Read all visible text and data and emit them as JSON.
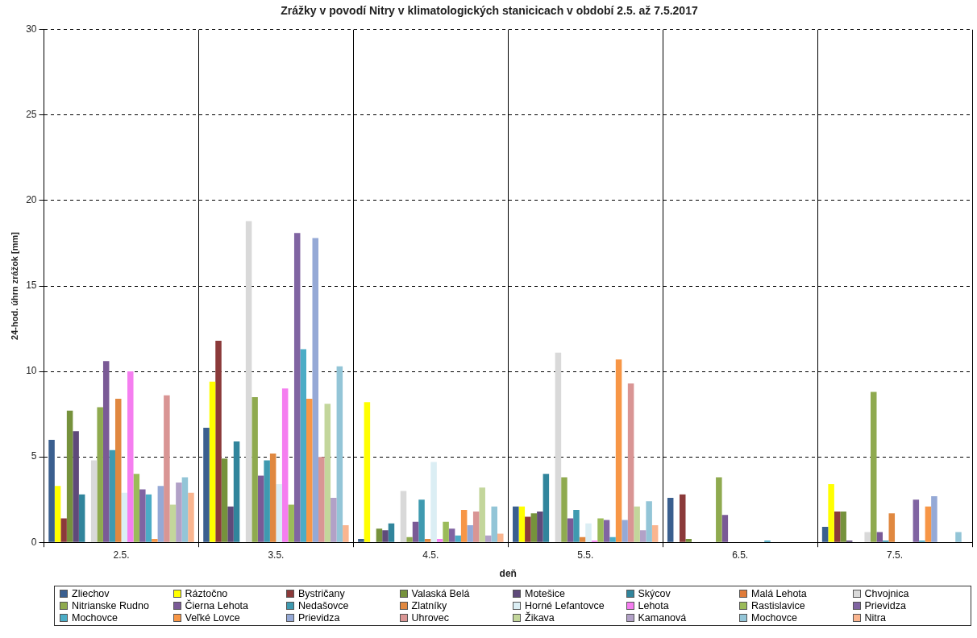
{
  "chart_data": {
    "type": "bar",
    "title": "Zrážky v povodí Nitry v klimatologických stanicicach v období 2.5. až 7.5.2017",
    "xlabel": "deň",
    "ylabel": "24-hod. úhrn zrážok [mm]",
    "categories": [
      "2.5.",
      "3.5.",
      "4.5.",
      "5.5.",
      "6.5.",
      "7.5."
    ],
    "ylim": [
      0,
      30
    ],
    "yticks": [
      0,
      5,
      10,
      15,
      20,
      25,
      30
    ],
    "grid": true,
    "legend": "bottom",
    "series": [
      {
        "name": "Zliechov",
        "color": "#3a5f8f",
        "values": [
          6.0,
          6.7,
          0.2,
          2.1,
          2.6,
          0.9
        ]
      },
      {
        "name": "Ráztočno",
        "color": "#ffff00",
        "values": [
          3.3,
          9.4,
          8.2,
          2.1,
          0,
          3.4
        ]
      },
      {
        "name": "Bystričany",
        "color": "#8b3a3a",
        "values": [
          1.4,
          11.8,
          0,
          1.5,
          2.8,
          1.8
        ]
      },
      {
        "name": "Valaská Belá",
        "color": "#76923c",
        "values": [
          7.7,
          4.9,
          0.8,
          1.7,
          0.2,
          1.8
        ]
      },
      {
        "name": "Motešice",
        "color": "#5f4a7a",
        "values": [
          6.5,
          2.1,
          0.7,
          1.8,
          0,
          0.1
        ]
      },
      {
        "name": "Skýcov",
        "color": "#31859c",
        "values": [
          2.8,
          5.9,
          1.1,
          4.0,
          0,
          0
        ]
      },
      {
        "name": "Malá Lehota",
        "color": "#e07b39",
        "values": [
          0,
          0,
          0,
          0,
          0,
          0
        ]
      },
      {
        "name": "Chvojnica",
        "color": "#d9d9d9",
        "values": [
          4.8,
          18.8,
          3.0,
          11.1,
          0,
          0.6
        ]
      },
      {
        "name": "Nitrianske Rudno",
        "color": "#8faa4f",
        "values": [
          7.9,
          8.5,
          0.3,
          3.8,
          3.8,
          8.8
        ]
      },
      {
        "name": "Čierna Lehota",
        "color": "#7a5a96",
        "values": [
          10.6,
          3.9,
          1.2,
          1.4,
          1.6,
          0.6
        ]
      },
      {
        "name": "Nedašovce",
        "color": "#3f9ab0",
        "values": [
          5.4,
          4.8,
          2.5,
          1.9,
          0,
          0.1
        ]
      },
      {
        "name": "Zlatníky",
        "color": "#e08840",
        "values": [
          8.4,
          5.2,
          0.2,
          0.3,
          0,
          1.7
        ]
      },
      {
        "name": "Horné Lefantovce",
        "color": "#dbeef4",
        "values": [
          2.9,
          3.4,
          4.7,
          1.1,
          0,
          0
        ]
      },
      {
        "name": "Lehota",
        "color": "#f57ef0",
        "values": [
          10.0,
          9.0,
          0.2,
          0.1,
          0,
          0
        ]
      },
      {
        "name": "Rastislavice",
        "color": "#9bbb59",
        "values": [
          4.0,
          2.2,
          1.2,
          1.4,
          0,
          0
        ]
      },
      {
        "name": "Prievidza",
        "color": "#8064a2",
        "values": [
          3.1,
          18.1,
          0.8,
          1.3,
          0,
          2.5
        ]
      },
      {
        "name": "Mochovce",
        "color": "#4bacc6",
        "values": [
          2.8,
          11.3,
          0.4,
          0.3,
          0.1,
          0.1
        ]
      },
      {
        "name": "Veľké Lovce",
        "color": "#f79646",
        "values": [
          0.2,
          8.4,
          1.9,
          10.7,
          0,
          2.1
        ]
      },
      {
        "name": "Prievidza",
        "color": "#95a9d6",
        "values": [
          3.3,
          17.8,
          1.0,
          1.3,
          0,
          2.7
        ]
      },
      {
        "name": "Uhrovec",
        "color": "#d99594",
        "values": [
          8.6,
          5.0,
          1.8,
          9.3,
          0,
          0
        ]
      },
      {
        "name": "Žikava",
        "color": "#c3d69b",
        "values": [
          2.2,
          8.1,
          3.2,
          2.1,
          0,
          0
        ]
      },
      {
        "name": "Kamanová",
        "color": "#b2a1c7",
        "values": [
          3.5,
          2.6,
          0.4,
          0.7,
          0,
          0
        ]
      },
      {
        "name": "Mochovce",
        "color": "#93c5d7",
        "values": [
          3.8,
          10.3,
          2.1,
          2.4,
          0,
          0.6
        ]
      },
      {
        "name": "Nitra",
        "color": "#fab58f",
        "values": [
          2.9,
          1.0,
          0.5,
          1.0,
          0,
          0
        ]
      }
    ]
  }
}
